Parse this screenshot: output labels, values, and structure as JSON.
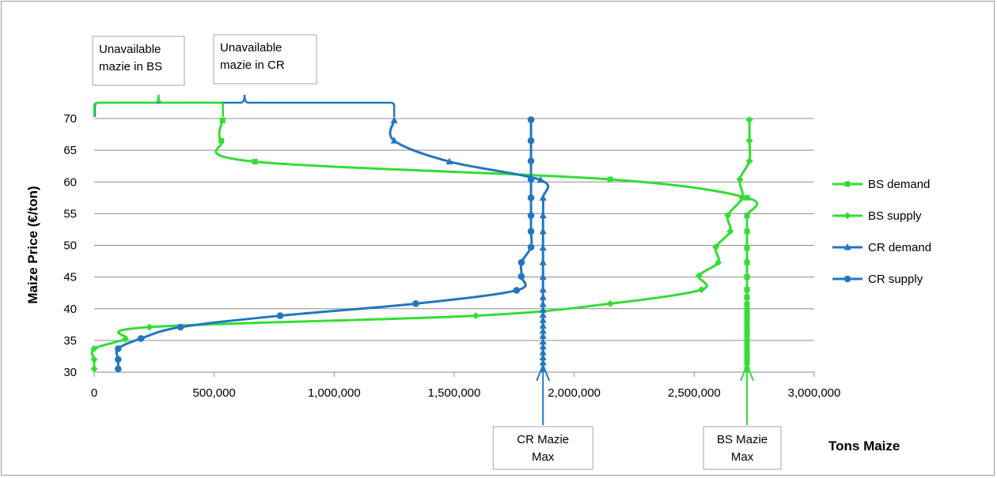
{
  "chart_data": {
    "type": "line",
    "title": "",
    "xlabel": "Tons Maize",
    "ylabel": "Maize Price (€/ton)",
    "xlim": [
      0,
      3000000
    ],
    "ylim": [
      30,
      70
    ],
    "xticks": [
      0,
      500000,
      1000000,
      1500000,
      2000000,
      2500000,
      3000000
    ],
    "xtick_labels": [
      "0",
      "500,000",
      "1,000,000",
      "1,500,000",
      "2,000,000",
      "2,500,000",
      "3,000,000"
    ],
    "yticks": [
      30,
      35,
      40,
      45,
      50,
      55,
      60,
      65,
      70
    ],
    "ytick_labels": [
      "30",
      "35",
      "40",
      "45",
      "50",
      "55",
      "60",
      "65",
      "70"
    ],
    "grid": "horizontal",
    "legend_position": "right",
    "series": [
      {
        "name": "BS demand",
        "color": "#33dd33",
        "marker": "square",
        "points": [
          [
            2720000,
            30.5
          ],
          [
            2720000,
            31.5
          ],
          [
            2720000,
            32.3
          ],
          [
            2720000,
            33.1
          ],
          [
            2720000,
            34
          ],
          [
            2720000,
            34.8
          ],
          [
            2720000,
            35.7
          ],
          [
            2720000,
            36.5
          ],
          [
            2720000,
            37.3
          ],
          [
            2720000,
            38.2
          ],
          [
            2720000,
            39
          ],
          [
            2720000,
            39.8
          ],
          [
            2720000,
            40.7
          ],
          [
            2720000,
            41.8
          ],
          [
            2720000,
            43
          ],
          [
            2720000,
            45
          ],
          [
            2720000,
            47.3
          ],
          [
            2720000,
            49.6
          ],
          [
            2720000,
            52.2
          ],
          [
            2720000,
            54.7
          ],
          [
            2720000,
            57.5
          ],
          [
            2150000,
            60.4
          ],
          [
            670000,
            63.2
          ],
          [
            530000,
            66.5
          ],
          [
            535000,
            69.7
          ]
        ]
      },
      {
        "name": "BS supply",
        "color": "#33dd33",
        "marker": "diamond",
        "points": [
          [
            0,
            30.5
          ],
          [
            0,
            32
          ],
          [
            0,
            33.7
          ],
          [
            130000,
            35.2
          ],
          [
            230000,
            37.1
          ],
          [
            1590000,
            38.9
          ],
          [
            2150000,
            40.8
          ],
          [
            2530000,
            43
          ],
          [
            2520000,
            45.2
          ],
          [
            2600000,
            47.3
          ],
          [
            2590000,
            49.7
          ],
          [
            2650000,
            52.2
          ],
          [
            2640000,
            54.7
          ],
          [
            2700000,
            57.5
          ],
          [
            2690000,
            60.4
          ],
          [
            2730000,
            63.3
          ],
          [
            2730000,
            66.5
          ],
          [
            2730000,
            69.8
          ]
        ]
      },
      {
        "name": "CR demand",
        "color": "#2277c0",
        "marker": "triangle",
        "points": [
          [
            1870000,
            30.5
          ],
          [
            1870000,
            31.5
          ],
          [
            1870000,
            32.3
          ],
          [
            1870000,
            33.1
          ],
          [
            1870000,
            34
          ],
          [
            1870000,
            34.8
          ],
          [
            1870000,
            35.7
          ],
          [
            1870000,
            36.5
          ],
          [
            1870000,
            37.3
          ],
          [
            1870000,
            38.2
          ],
          [
            1870000,
            39
          ],
          [
            1870000,
            39.8
          ],
          [
            1870000,
            40.7
          ],
          [
            1870000,
            41.8
          ],
          [
            1870000,
            43
          ],
          [
            1870000,
            45
          ],
          [
            1870000,
            47.3
          ],
          [
            1870000,
            49.6
          ],
          [
            1870000,
            52.2
          ],
          [
            1870000,
            54.7
          ],
          [
            1870000,
            57.5
          ],
          [
            1860000,
            60.3
          ],
          [
            1480000,
            63.2
          ],
          [
            1250000,
            66.5
          ],
          [
            1250000,
            69.7
          ]
        ]
      },
      {
        "name": "CR supply",
        "color": "#2277c0",
        "marker": "circle",
        "points": [
          [
            100000,
            30.5
          ],
          [
            100000,
            32
          ],
          [
            100000,
            33.7
          ],
          [
            195000,
            35.3
          ],
          [
            360000,
            37.1
          ],
          [
            775000,
            38.9
          ],
          [
            1340000,
            40.8
          ],
          [
            1760000,
            42.9
          ],
          [
            1780000,
            45.1
          ],
          [
            1780000,
            47.3
          ],
          [
            1820000,
            49.7
          ],
          [
            1820000,
            52.2
          ],
          [
            1820000,
            54.7
          ],
          [
            1820000,
            57.5
          ],
          [
            1820000,
            60.4
          ],
          [
            1820000,
            63.3
          ],
          [
            1820000,
            66.5
          ],
          [
            1820000,
            69.8
          ]
        ]
      }
    ],
    "annotations": {
      "bs_unavailable": {
        "text_line1": "Unavailable",
        "text_line2": "mazie in BS",
        "color": "#33dd33",
        "x_from": 0,
        "x_to": 530000
      },
      "cr_unavailable": {
        "text_line1": "Unavailable",
        "text_line2": "mazie in CR",
        "color": "#2277c0",
        "x_from": 0,
        "x_to": 1250000
      },
      "cr_max": {
        "text_line1": "CR Mazie",
        "text_line2": "Max",
        "color": "#2277c0",
        "x": 1870000
      },
      "bs_max": {
        "text_line1": "BS Mazie",
        "text_line2": "Max",
        "color": "#33dd33",
        "x": 2720000
      }
    }
  }
}
